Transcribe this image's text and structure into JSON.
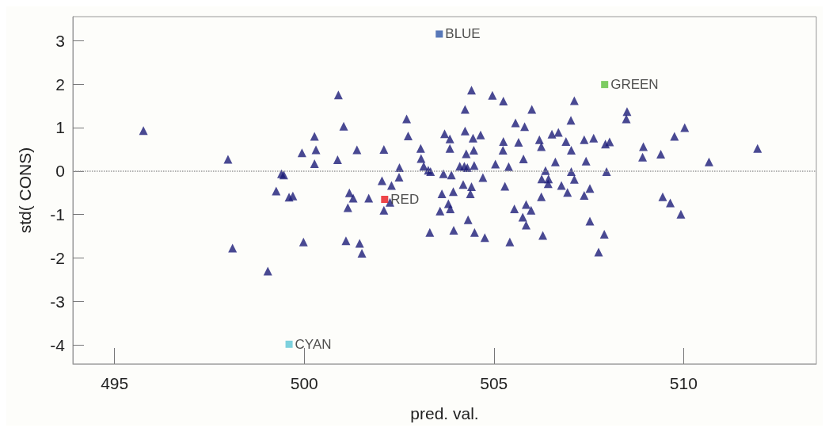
{
  "chart_data": {
    "type": "scatter",
    "xlabel": "pred. val.",
    "ylabel": "std( CONS)",
    "xlim": [
      493.9,
      513.5
    ],
    "xticks": [
      495,
      500,
      505,
      510
    ],
    "ylim": [
      -4.43,
      3.55
    ],
    "yticks": [
      -4,
      -3,
      -2,
      -1,
      0,
      1,
      2,
      3
    ],
    "grid": false,
    "legend": false,
    "ref_lines": [
      {
        "axis": "y",
        "value": 0,
        "color": "#999999",
        "line_style": "dotted"
      }
    ],
    "series": [
      {
        "color": "#1c1c78",
        "marker": "triangle",
        "x": [
          495.76,
          497.99,
          498.11,
          499.04,
          499.26,
          499.4,
          499.46,
          499.6,
          499.7,
          499.94,
          499.98,
          500.27,
          500.31,
          500.27,
          500.9,
          500.88,
          501.04,
          501.1,
          501.19,
          501.29,
          501.15,
          501.39,
          501.46,
          501.52,
          501.7,
          502.1,
          502.05,
          502.3,
          502.1,
          502.26,
          502.51,
          502.5,
          502.7,
          502.74,
          503.07,
          503.08,
          503.15,
          503.27,
          503.33,
          503.67,
          503.88,
          503.7,
          503.84,
          503.84,
          504.24,
          504.41,
          504.24,
          504.45,
          504.65,
          504.27,
          504.47,
          504.1,
          504.22,
          504.3,
          504.48,
          504.71,
          504.19,
          504.41,
          504.38,
          503.63,
          503.93,
          503.8,
          503.85,
          503.58,
          504.96,
          505.25,
          505.57,
          505.81,
          506.0,
          505.25,
          505.24,
          505.65,
          505.04,
          505.39,
          505.78,
          505.29,
          505.54,
          505.85,
          505.98,
          506.2,
          506.25,
          506.36,
          506.26,
          506.44,
          506.43,
          506.25,
          506.53,
          506.7,
          506.9,
          507.04,
          507.03,
          507.12,
          506.62,
          507.04,
          507.12,
          506.78,
          506.94,
          507.38,
          507.63,
          507.43,
          507.38,
          507.53,
          507.94,
          508.05,
          507.97,
          508.51,
          508.49,
          508.94,
          508.92,
          509.4,
          509.76,
          510.03,
          510.67,
          511.95,
          509.45,
          509.65,
          509.93,
          503.31,
          503.94,
          504.49,
          504.76,
          505.42,
          506.29,
          505.85,
          505.76,
          504.32,
          507.53,
          507.91,
          507.76
        ],
        "values": [
          0.93,
          0.27,
          -1.77,
          -2.3,
          -0.46,
          -0.06,
          -0.09,
          -0.6,
          -0.57,
          0.42,
          -1.63,
          0.8,
          0.49,
          0.17,
          1.75,
          0.26,
          1.03,
          -1.6,
          -0.5,
          -0.62,
          -0.84,
          0.49,
          -1.66,
          -1.89,
          -0.62,
          0.5,
          -0.22,
          -0.33,
          -0.9,
          -0.72,
          0.08,
          -0.14,
          1.2,
          0.81,
          0.52,
          0.29,
          0.11,
          0.02,
          -0.01,
          -0.06,
          -0.09,
          0.86,
          0.74,
          0.52,
          1.42,
          1.86,
          0.92,
          0.76,
          0.83,
          0.4,
          0.48,
          0.11,
          0.11,
          0.08,
          0.13,
          -0.15,
          -0.31,
          -0.36,
          -0.52,
          -0.52,
          -0.47,
          -0.75,
          -0.87,
          -0.92,
          1.74,
          1.61,
          1.11,
          1.02,
          1.42,
          0.68,
          0.48,
          0.66,
          0.16,
          0.1,
          0.28,
          -0.35,
          -0.87,
          -0.77,
          -0.9,
          0.72,
          0.56,
          0.01,
          -0.18,
          -0.18,
          -0.29,
          -0.59,
          0.85,
          0.89,
          0.68,
          0.48,
          1.17,
          1.62,
          0.21,
          -0.01,
          -0.19,
          -0.33,
          -0.49,
          0.72,
          0.76,
          0.23,
          -0.56,
          -0.4,
          0.62,
          0.67,
          -0.01,
          1.37,
          1.2,
          0.56,
          0.32,
          0.39,
          0.8,
          1.0,
          0.21,
          0.52,
          -0.59,
          -0.73,
          -0.99,
          -1.41,
          -1.36,
          -1.41,
          -1.53,
          -1.63,
          -1.48,
          -1.24,
          -1.06,
          -1.12,
          -1.15,
          -1.45,
          -1.86
        ]
      },
      {
        "name": "BLUE",
        "color": "#2e56a8",
        "marker": "square",
        "x": [
          503.56
        ],
        "values": [
          3.15
        ]
      },
      {
        "name": "GREEN",
        "color": "#5cbf3c",
        "marker": "square",
        "x": [
          507.92
        ],
        "values": [
          1.99
        ]
      },
      {
        "name": "RED",
        "color": "#e8161b",
        "marker": "square",
        "x": [
          502.12
        ],
        "values": [
          -0.65
        ]
      },
      {
        "name": "CYAN",
        "color": "#5cc6d6",
        "marker": "square",
        "x": [
          499.6
        ],
        "values": [
          -3.98
        ]
      }
    ]
  }
}
